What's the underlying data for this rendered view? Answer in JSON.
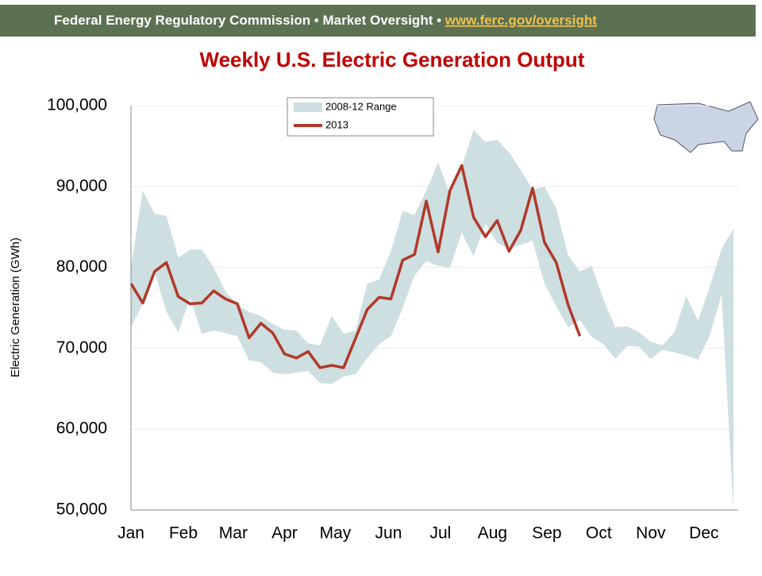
{
  "header": {
    "text": "Federal Energy Regulatory Commission • Market Oversight • ",
    "link": "www.ferc.gov/oversight"
  },
  "chart_data": {
    "type": "line",
    "title": "Weekly U.S. Electric Generation Output",
    "ylabel": "Electric Generation (GWh)",
    "x": [
      1,
      2,
      3,
      4,
      5,
      6,
      7,
      8,
      9,
      10,
      11,
      12,
      13,
      14,
      15,
      16,
      17,
      18,
      19,
      20,
      21,
      22,
      23,
      24,
      25,
      26,
      27,
      28,
      29,
      30,
      31,
      32,
      33,
      34,
      35,
      36,
      37,
      38,
      39,
      40,
      41,
      42,
      43,
      44,
      45,
      46,
      47,
      48,
      49,
      50,
      51,
      52
    ],
    "xlim": [
      1,
      52.4
    ],
    "xticks": [
      {
        "value": 1,
        "label": "Jan"
      },
      {
        "value": 5.43,
        "label": "Feb"
      },
      {
        "value": 9.66,
        "label": "Mar"
      },
      {
        "value": 14.0,
        "label": "Apr"
      },
      {
        "value": 18.3,
        "label": "May"
      },
      {
        "value": 22.8,
        "label": "Jun"
      },
      {
        "value": 27.2,
        "label": "Jul"
      },
      {
        "value": 31.6,
        "label": "Aug"
      },
      {
        "value": 36.2,
        "label": "Sep"
      },
      {
        "value": 40.6,
        "label": "Oct"
      },
      {
        "value": 45.0,
        "label": "Nov"
      },
      {
        "value": 49.5,
        "label": "Dec"
      }
    ],
    "ylim": [
      50000,
      100000
    ],
    "yticks": [
      {
        "value": 50000,
        "label": "50,000"
      },
      {
        "value": 60000,
        "label": "60,000"
      },
      {
        "value": 70000,
        "label": "70,000"
      },
      {
        "value": 80000,
        "label": "80,000"
      },
      {
        "value": 90000,
        "label": "90,000"
      },
      {
        "value": 100000,
        "label": "100,000"
      }
    ],
    "grid": true,
    "legend": "top",
    "series": [
      {
        "name": "2008-12 Range",
        "color": "#cddfe0",
        "high": [
          80000,
          89500,
          86600,
          86400,
          81200,
          82200,
          82200,
          80000,
          77000,
          75400,
          74500,
          74000,
          73000,
          72300,
          72200,
          70600,
          70400,
          74000,
          71800,
          72200,
          78000,
          78500,
          82000,
          87000,
          86500,
          89500,
          93000,
          89000,
          92500,
          97000,
          95500,
          95800,
          94200,
          92000,
          89600,
          90000,
          87300,
          81500,
          79500,
          80200,
          76000,
          72600,
          72700,
          72000,
          70800,
          70400,
          72000,
          76400,
          73400,
          77600,
          82300,
          84800
        ],
        "low": [
          72600,
          75500,
          79500,
          74500,
          72000,
          76200,
          71800,
          72200,
          71900,
          71500,
          68500,
          68300,
          67000,
          66800,
          67000,
          67200,
          65700,
          65600,
          66500,
          66800,
          68800,
          70500,
          71500,
          75000,
          79000,
          80800,
          80200,
          80000,
          84300,
          81400,
          85400,
          83000,
          82300,
          82800,
          83300,
          78000,
          75200,
          72600,
          73500,
          71400,
          70500,
          68700,
          70300,
          70200,
          68700,
          69800,
          69500,
          69100,
          68600,
          71600,
          76700,
          50000
        ]
      },
      {
        "name": "2013",
        "color": "#b0392b",
        "values": [
          78000,
          75600,
          79500,
          80600,
          76400,
          75500,
          75600,
          77100,
          76100,
          75500,
          71300,
          73100,
          71900,
          69300,
          68800,
          69600,
          67600,
          67900,
          67600,
          71200,
          74800,
          76300,
          76100,
          80900,
          81600,
          88200,
          81900,
          89500,
          92600,
          86200,
          83800,
          85800,
          82000,
          84600,
          89800,
          83100,
          80600,
          75400,
          71500,
          null,
          null,
          null,
          null,
          null,
          null,
          null,
          null,
          null,
          null,
          null,
          null,
          null
        ]
      }
    ]
  }
}
